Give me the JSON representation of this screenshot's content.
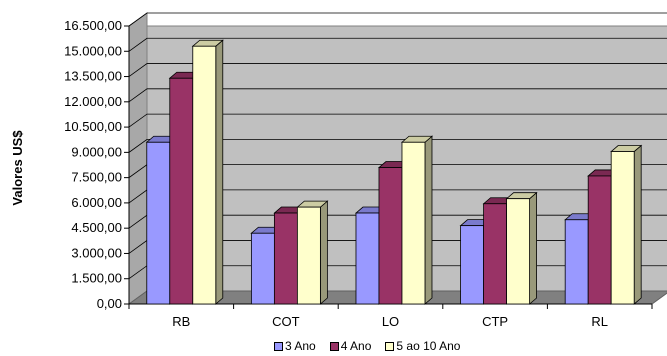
{
  "chart_data": {
    "type": "bar",
    "title": "",
    "xlabel": "",
    "ylabel": "Valores US$",
    "ylim": [
      0,
      16500
    ],
    "yticks": [
      "0,00",
      "1.500,00",
      "3.000,00",
      "4.500,00",
      "6.000,00",
      "7.500,00",
      "9.000,00",
      "10.500,00",
      "12.000,00",
      "13.500,00",
      "15.000,00",
      "16.500,00"
    ],
    "categories": [
      "RB",
      "COT",
      "LO",
      "CTP",
      "RL"
    ],
    "grid": true,
    "legend_position": "bottom",
    "series": [
      {
        "name": "3 Ano",
        "color": "#9999ff",
        "values": [
          9600,
          4200,
          5400,
          4650,
          5000
        ]
      },
      {
        "name": "4 Ano",
        "color": "#993366",
        "values": [
          13400,
          5400,
          8100,
          5950,
          7600
        ]
      },
      {
        "name": "5 ao 10 Ano",
        "color": "#ffffcc",
        "values": [
          15300,
          5750,
          9600,
          6250,
          9050
        ]
      }
    ]
  }
}
